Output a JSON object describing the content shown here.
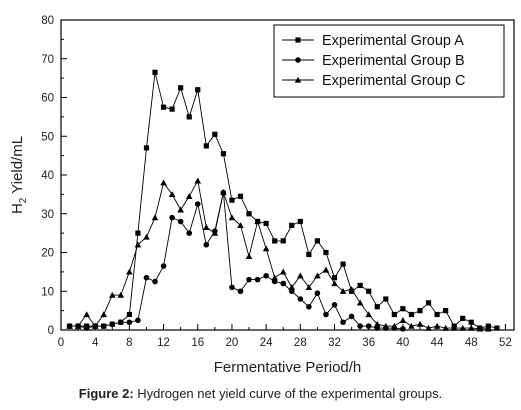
{
  "caption": {
    "label": "Figure 2:",
    "text": " Hydrogen net yield curve of the experimental groups."
  },
  "chart_data": {
    "type": "line",
    "xlabel": "Fermentative Period/h",
    "ylabel_main": "H",
    "ylabel_sub": "2",
    "ylabel_rest": " Yield/mL",
    "xlim": [
      0,
      53
    ],
    "ylim": [
      0,
      80
    ],
    "xticks": [
      0,
      4,
      8,
      12,
      16,
      20,
      24,
      28,
      32,
      36,
      40,
      44,
      48,
      52
    ],
    "xticks_minor": [
      2,
      6,
      10,
      14,
      18,
      22,
      26,
      30,
      34,
      38,
      42,
      46,
      50
    ],
    "yticks": [
      0,
      10,
      20,
      30,
      40,
      50,
      60,
      70,
      80
    ],
    "yticks_minor": [
      5,
      15,
      25,
      35,
      45,
      55,
      65,
      75
    ],
    "grid": false,
    "legend_position": "top-right",
    "series": [
      {
        "name": "Experimental Group A",
        "marker": "square",
        "points": [
          [
            1,
            1
          ],
          [
            2,
            1
          ],
          [
            3,
            1
          ],
          [
            4,
            1
          ],
          [
            5,
            1
          ],
          [
            6,
            1.5
          ],
          [
            7,
            2
          ],
          [
            8,
            4
          ],
          [
            9,
            25
          ],
          [
            10,
            47
          ],
          [
            11,
            66.5
          ],
          [
            12,
            57.5
          ],
          [
            13,
            57
          ],
          [
            14,
            62.5
          ],
          [
            15,
            55
          ],
          [
            16,
            62
          ],
          [
            17,
            47.5
          ],
          [
            18,
            50.5
          ],
          [
            19,
            45.5
          ],
          [
            20,
            33.5
          ],
          [
            21,
            34.5
          ],
          [
            22,
            30
          ],
          [
            23,
            28
          ],
          [
            24,
            27.5
          ],
          [
            25,
            23
          ],
          [
            26,
            23
          ],
          [
            27,
            27
          ],
          [
            28,
            28
          ],
          [
            29,
            19.5
          ],
          [
            30,
            23
          ],
          [
            31,
            20
          ],
          [
            32,
            13.5
          ],
          [
            33,
            17
          ],
          [
            34,
            10
          ],
          [
            35,
            11.5
          ],
          [
            36,
            10
          ],
          [
            37,
            6
          ],
          [
            38,
            8
          ],
          [
            39,
            4
          ],
          [
            40,
            5.5
          ],
          [
            41,
            4
          ],
          [
            42,
            5
          ],
          [
            43,
            7
          ],
          [
            44,
            4
          ],
          [
            45,
            5
          ],
          [
            46,
            1
          ],
          [
            47,
            3
          ],
          [
            48,
            2
          ],
          [
            49,
            0.5
          ],
          [
            50,
            1
          ],
          [
            51,
            0.5
          ]
        ]
      },
      {
        "name": "Experimental Group B",
        "marker": "circle",
        "points": [
          [
            1,
            1
          ],
          [
            2,
            1
          ],
          [
            3,
            0.5
          ],
          [
            4,
            1
          ],
          [
            5,
            1
          ],
          [
            6,
            1.5
          ],
          [
            7,
            2
          ],
          [
            8,
            2
          ],
          [
            9,
            2.5
          ],
          [
            10,
            13.5
          ],
          [
            11,
            12.5
          ],
          [
            12,
            16.5
          ],
          [
            13,
            29
          ],
          [
            14,
            28
          ],
          [
            15,
            25
          ],
          [
            16,
            32.5
          ],
          [
            17,
            22
          ],
          [
            18,
            25.5
          ],
          [
            19,
            35.5
          ],
          [
            20,
            11
          ],
          [
            21,
            10
          ],
          [
            22,
            13
          ],
          [
            23,
            13
          ],
          [
            24,
            14
          ],
          [
            25,
            12.5
          ],
          [
            26,
            12
          ],
          [
            27,
            10
          ],
          [
            28,
            8
          ],
          [
            29,
            6
          ],
          [
            30,
            9.5
          ],
          [
            31,
            4
          ],
          [
            32,
            6.5
          ],
          [
            33,
            2
          ],
          [
            34,
            3.5
          ],
          [
            35,
            1
          ],
          [
            36,
            1
          ],
          [
            37,
            0.5
          ],
          [
            38,
            0.5
          ],
          [
            39,
            0.5
          ],
          [
            40,
            0.3
          ]
        ]
      },
      {
        "name": "Experimental Group C",
        "marker": "triangle",
        "points": [
          [
            1,
            1
          ],
          [
            2,
            1
          ],
          [
            3,
            4
          ],
          [
            4,
            1
          ],
          [
            5,
            4
          ],
          [
            6,
            9
          ],
          [
            7,
            9
          ],
          [
            8,
            15
          ],
          [
            9,
            22
          ],
          [
            10,
            24
          ],
          [
            11,
            29
          ],
          [
            12,
            38
          ],
          [
            13,
            35
          ],
          [
            14,
            31
          ],
          [
            15,
            34.5
          ],
          [
            16,
            38.5
          ],
          [
            17,
            26.5
          ],
          [
            18,
            25
          ],
          [
            19,
            35.5
          ],
          [
            20,
            29
          ],
          [
            21,
            27
          ],
          [
            22,
            19
          ],
          [
            23,
            28
          ],
          [
            24,
            21
          ],
          [
            25,
            13.5
          ],
          [
            26,
            15
          ],
          [
            27,
            11
          ],
          [
            28,
            14
          ],
          [
            29,
            11
          ],
          [
            30,
            14
          ],
          [
            31,
            15.5
          ],
          [
            32,
            12
          ],
          [
            33,
            10
          ],
          [
            34,
            10.5
          ],
          [
            35,
            7
          ],
          [
            36,
            4
          ],
          [
            37,
            1.5
          ],
          [
            38,
            1
          ],
          [
            39,
            1
          ],
          [
            40,
            2.5
          ],
          [
            41,
            1
          ],
          [
            42,
            1.5
          ],
          [
            43,
            0.5
          ],
          [
            44,
            1
          ],
          [
            45,
            0.5
          ],
          [
            46,
            0.5
          ],
          [
            47,
            0.5
          ],
          [
            48,
            0.5
          ],
          [
            49,
            0.3
          ],
          [
            50,
            0.3
          ]
        ]
      }
    ]
  }
}
